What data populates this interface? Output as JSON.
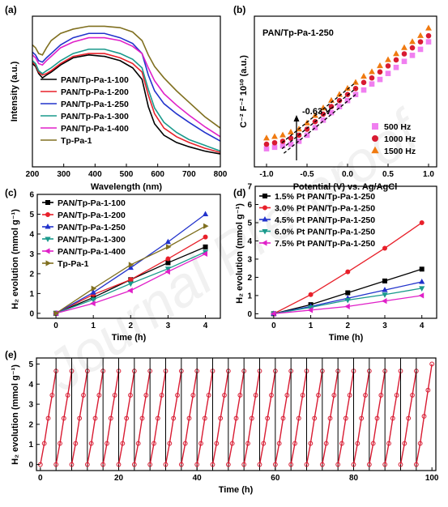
{
  "watermark": "Journal Pre-proof",
  "chart_data": [
    {
      "panel": "(a)",
      "type": "line",
      "xlabel": "Wavelength (nm)",
      "ylabel": "Intensity (a.u.)",
      "xlim": [
        200,
        800
      ],
      "ylim": [
        0,
        1.05
      ],
      "xticks": [
        "200",
        "300",
        "400",
        "500",
        "600",
        "700",
        "800"
      ],
      "legend_position": "bottom-left",
      "series": [
        {
          "name": "PAN/Tp-Pa-1-100",
          "color": "#000000",
          "x": [
            200,
            210,
            220,
            232,
            245,
            260,
            290,
            330,
            380,
            430,
            480,
            520,
            550,
            570,
            590,
            620,
            660,
            700,
            750,
            800
          ],
          "y": [
            0.72,
            0.7,
            0.65,
            0.62,
            0.64,
            0.66,
            0.71,
            0.76,
            0.78,
            0.77,
            0.74,
            0.69,
            0.61,
            0.42,
            0.3,
            0.22,
            0.17,
            0.14,
            0.11,
            0.09
          ]
        },
        {
          "name": "PAN/Tp-Pa-1-200",
          "color": "#e8202a",
          "x": [
            200,
            210,
            220,
            232,
            245,
            260,
            290,
            330,
            380,
            430,
            480,
            520,
            550,
            570,
            590,
            620,
            660,
            700,
            750,
            800
          ],
          "y": [
            0.73,
            0.71,
            0.66,
            0.64,
            0.65,
            0.67,
            0.72,
            0.77,
            0.79,
            0.79,
            0.76,
            0.72,
            0.66,
            0.5,
            0.37,
            0.27,
            0.21,
            0.17,
            0.13,
            0.1
          ]
        },
        {
          "name": "PAN/Tp-Pa-1-250",
          "color": "#2233cc",
          "x": [
            200,
            210,
            220,
            232,
            245,
            260,
            290,
            330,
            380,
            430,
            480,
            520,
            550,
            570,
            590,
            620,
            660,
            700,
            750,
            800
          ],
          "y": [
            0.8,
            0.78,
            0.74,
            0.73,
            0.76,
            0.79,
            0.85,
            0.9,
            0.93,
            0.93,
            0.9,
            0.86,
            0.79,
            0.64,
            0.53,
            0.44,
            0.37,
            0.31,
            0.24,
            0.18
          ]
        },
        {
          "name": "PAN/Tp-Pa-1-300",
          "color": "#1a9a8c",
          "x": [
            200,
            210,
            220,
            232,
            245,
            260,
            290,
            330,
            380,
            430,
            480,
            520,
            550,
            570,
            590,
            620,
            660,
            700,
            750,
            800
          ],
          "y": [
            0.74,
            0.72,
            0.67,
            0.65,
            0.67,
            0.69,
            0.74,
            0.79,
            0.82,
            0.82,
            0.79,
            0.75,
            0.69,
            0.54,
            0.41,
            0.31,
            0.24,
            0.19,
            0.15,
            0.11
          ]
        },
        {
          "name": "PAN/Tp-Pa-1-400",
          "color": "#e020c8",
          "x": [
            200,
            210,
            220,
            232,
            245,
            260,
            290,
            330,
            380,
            430,
            480,
            520,
            550,
            570,
            590,
            620,
            660,
            700,
            750,
            800
          ],
          "y": [
            0.78,
            0.76,
            0.72,
            0.71,
            0.74,
            0.77,
            0.83,
            0.87,
            0.9,
            0.9,
            0.88,
            0.84,
            0.79,
            0.69,
            0.6,
            0.51,
            0.43,
            0.36,
            0.28,
            0.21
          ]
        },
        {
          "name": "Tp-Pa-1",
          "color": "#807020",
          "x": [
            200,
            210,
            220,
            232,
            245,
            260,
            290,
            330,
            380,
            430,
            480,
            520,
            550,
            570,
            590,
            620,
            660,
            700,
            750,
            800
          ],
          "y": [
            0.85,
            0.83,
            0.79,
            0.78,
            0.83,
            0.88,
            0.93,
            0.96,
            0.98,
            0.98,
            0.97,
            0.94,
            0.88,
            0.78,
            0.7,
            0.62,
            0.53,
            0.45,
            0.35,
            0.27
          ]
        }
      ]
    },
    {
      "panel": "(b)",
      "type": "scatter",
      "title": "PAN/Tp-Pa-1-250",
      "xlabel": "Potential (V) vs. Ag/AgCl",
      "ylabel": "C⁻² F⁻² 10¹⁰ (a.u.)",
      "xlim": [
        -1.15,
        1.1
      ],
      "ylim": [
        0,
        1.0
      ],
      "xticks": [
        "-1.0",
        "-0.5",
        "0.0",
        "0.5",
        "1.0"
      ],
      "annotation": "-0.63 V",
      "annotation_x": -0.63,
      "legend_position": "bottom-right",
      "series": [
        {
          "name": "500 Hz",
          "color": "#f07ff0",
          "marker": "square",
          "x": [
            -1.0,
            -0.9,
            -0.8,
            -0.7,
            -0.6,
            -0.5,
            -0.4,
            -0.3,
            -0.2,
            -0.1,
            0.0,
            0.1,
            0.2,
            0.3,
            0.4,
            0.5,
            0.6,
            0.7,
            0.8,
            0.9,
            1.0
          ],
          "y": [
            0.12,
            0.13,
            0.14,
            0.15,
            0.17,
            0.21,
            0.26,
            0.31,
            0.36,
            0.4,
            0.44,
            0.48,
            0.51,
            0.55,
            0.58,
            0.62,
            0.66,
            0.7,
            0.74,
            0.78,
            0.83
          ]
        },
        {
          "name": "1000 Hz",
          "color": "#d81b32",
          "marker": "circle",
          "x": [
            -1.0,
            -0.9,
            -0.8,
            -0.7,
            -0.6,
            -0.5,
            -0.4,
            -0.3,
            -0.2,
            -0.1,
            0.0,
            0.1,
            0.2,
            0.3,
            0.4,
            0.5,
            0.6,
            0.7,
            0.8,
            0.9,
            1.0
          ],
          "y": [
            0.15,
            0.16,
            0.17,
            0.19,
            0.21,
            0.25,
            0.3,
            0.35,
            0.4,
            0.44,
            0.48,
            0.52,
            0.56,
            0.59,
            0.63,
            0.67,
            0.71,
            0.75,
            0.79,
            0.83,
            0.87
          ]
        },
        {
          "name": "1500 Hz",
          "color": "#f07a10",
          "marker": "triangle",
          "x": [
            -1.0,
            -0.9,
            -0.8,
            -0.7,
            -0.6,
            -0.5,
            -0.4,
            -0.3,
            -0.2,
            -0.1,
            0.0,
            0.1,
            0.2,
            0.3,
            0.4,
            0.5,
            0.6,
            0.7,
            0.8,
            0.9,
            1.0
          ],
          "y": [
            0.19,
            0.2,
            0.21,
            0.23,
            0.25,
            0.29,
            0.34,
            0.39,
            0.44,
            0.48,
            0.52,
            0.56,
            0.6,
            0.63,
            0.67,
            0.71,
            0.75,
            0.79,
            0.83,
            0.87,
            0.92
          ]
        }
      ]
    },
    {
      "panel": "(c)",
      "type": "line",
      "xlabel": "Time (h)",
      "ylabel": "H₂ evolution (mmol g⁻¹)",
      "xlim": [
        -0.5,
        4.4
      ],
      "ylim": [
        -0.25,
        6
      ],
      "xticks": [
        "0",
        "1",
        "2",
        "3",
        "4"
      ],
      "yticks": [
        "0",
        "1",
        "2",
        "3",
        "4",
        "5",
        "6"
      ],
      "legend_position": "top-left",
      "series": [
        {
          "name": "PAN/Tp-Pa-1-100",
          "color": "#000000",
          "marker": "square",
          "x": [
            0,
            1,
            2,
            3,
            4
          ],
          "y": [
            0,
            0.8,
            1.7,
            2.55,
            3.35
          ]
        },
        {
          "name": "PAN/Tp-Pa-1-200",
          "color": "#e8202a",
          "marker": "circle",
          "x": [
            0,
            1,
            2,
            3,
            4
          ],
          "y": [
            0,
            0.95,
            1.7,
            2.75,
            3.85
          ]
        },
        {
          "name": "PAN/Tp-Pa-1-250",
          "color": "#2233cc",
          "marker": "triangle",
          "x": [
            0,
            1,
            2,
            3,
            4
          ],
          "y": [
            0,
            1.05,
            2.3,
            3.6,
            5.0
          ]
        },
        {
          "name": "PAN/Tp-Pa-1-300",
          "color": "#1a9a8c",
          "marker": "triangle-down",
          "x": [
            0,
            1,
            2,
            3,
            4
          ],
          "y": [
            0,
            0.7,
            1.5,
            2.25,
            3.1
          ]
        },
        {
          "name": "PAN/Tp-Pa-1-400",
          "color": "#e020c8",
          "marker": "triangle-left",
          "x": [
            0,
            1,
            2,
            3,
            4
          ],
          "y": [
            0,
            0.5,
            1.15,
            2.1,
            3.0
          ]
        },
        {
          "name": "Tp-Pa-1",
          "color": "#807020",
          "marker": "triangle-right",
          "x": [
            0,
            1,
            2,
            3,
            4
          ],
          "y": [
            0,
            1.25,
            2.45,
            3.35,
            4.4
          ]
        }
      ]
    },
    {
      "panel": "(d)",
      "type": "line",
      "xlabel": "Time (h)",
      "ylabel": "H₂ evolution (mmol g⁻¹)",
      "xlim": [
        -0.5,
        4.4
      ],
      "ylim": [
        -0.25,
        7
      ],
      "xticks": [
        "0",
        "1",
        "2",
        "3",
        "4"
      ],
      "yticks": [
        "0",
        "1",
        "2",
        "3",
        "4",
        "5",
        "6",
        "7"
      ],
      "legend_position": "top-left",
      "series": [
        {
          "name": "1.5% Pt PAN/Tp-Pa-1-250",
          "color": "#000000",
          "marker": "square",
          "x": [
            0,
            1,
            2,
            3,
            4
          ],
          "y": [
            0,
            0.5,
            1.15,
            1.8,
            2.45
          ]
        },
        {
          "name": "3.0% Pt PAN/Tp-Pa-1-250",
          "color": "#e8202a",
          "marker": "circle",
          "x": [
            0,
            1,
            2,
            3,
            4
          ],
          "y": [
            0,
            1.05,
            2.3,
            3.6,
            5.0
          ]
        },
        {
          "name": "4.5% Pt PAN/Tp-Pa-1-250",
          "color": "#2233cc",
          "marker": "triangle",
          "x": [
            0,
            1,
            2,
            3,
            4
          ],
          "y": [
            0,
            0.4,
            0.85,
            1.3,
            1.75
          ]
        },
        {
          "name": "6.0% Pt PAN/Tp-Pa-1-250",
          "color": "#1a9a8c",
          "marker": "triangle-down",
          "x": [
            0,
            1,
            2,
            3,
            4
          ],
          "y": [
            0,
            0.35,
            0.75,
            1.05,
            1.4
          ]
        },
        {
          "name": "7.5% Pt PAN/Tp-Pa-1-250",
          "color": "#e020c8",
          "marker": "triangle-left",
          "x": [
            0,
            1,
            2,
            3,
            4
          ],
          "y": [
            0,
            0.2,
            0.4,
            0.7,
            1.0
          ]
        }
      ]
    },
    {
      "panel": "(e)",
      "type": "line",
      "xlabel": "Time (h)",
      "ylabel": "H₂ evolution (mmol g⁻¹)",
      "xlim": [
        -1,
        101
      ],
      "ylim": [
        -0.3,
        5.3
      ],
      "xticks": [
        "0",
        "20",
        "40",
        "60",
        "80",
        "100"
      ],
      "yticks": [
        "0",
        "1",
        "2",
        "3",
        "4",
        "5"
      ],
      "cycles": 25,
      "hours_per_cycle": 4,
      "cycle_x": [
        0,
        1,
        2,
        3,
        4
      ],
      "cycle_y": [
        0,
        1.05,
        2.3,
        3.45,
        4.65
      ],
      "cycle_y_last": [
        0,
        1.05,
        2.4,
        3.7,
        5.0
      ],
      "color": "#d81b32",
      "marker": "open-circle",
      "separator_lines": "vertical line at the end of each cycle"
    }
  ]
}
